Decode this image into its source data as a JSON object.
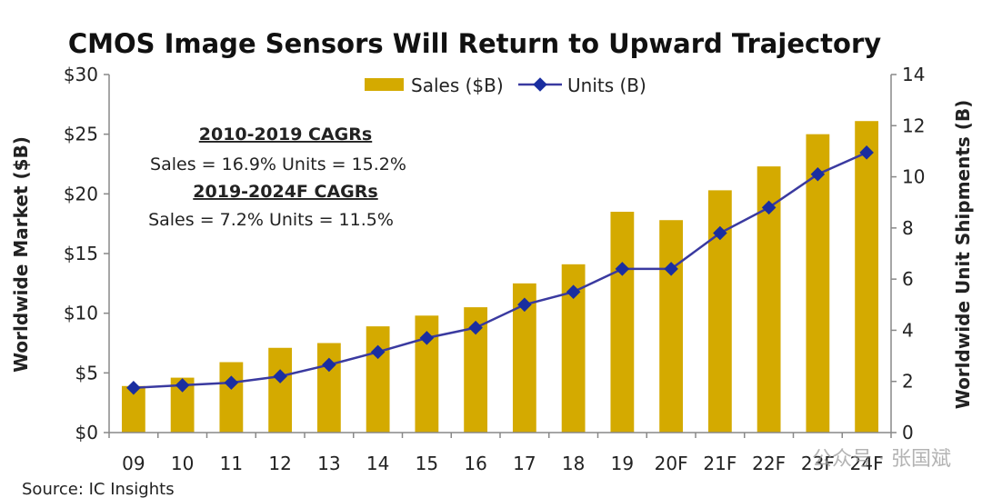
{
  "chart_data": {
    "type": "bar",
    "title": "CMOS Image Sensors Will Return to Upward Trajectory",
    "categories": [
      "09",
      "10",
      "11",
      "12",
      "13",
      "14",
      "15",
      "16",
      "17",
      "18",
      "19",
      "20F",
      "21F",
      "22F",
      "23F",
      "24F"
    ],
    "series": [
      {
        "name": "Sales ($B)",
        "type": "bar",
        "axis": "left",
        "color": "#d4aa00",
        "values": [
          3.9,
          4.6,
          5.9,
          7.1,
          7.5,
          8.9,
          9.8,
          10.5,
          12.5,
          14.1,
          18.5,
          17.8,
          20.3,
          22.3,
          25.0,
          26.1
        ]
      },
      {
        "name": "Units (B)",
        "type": "line",
        "axis": "right",
        "color": "#3a3aa0",
        "values": [
          1.75,
          1.85,
          1.95,
          2.2,
          2.65,
          3.15,
          3.7,
          4.1,
          5.0,
          5.5,
          6.4,
          6.4,
          7.8,
          8.8,
          10.1,
          10.95
        ]
      }
    ],
    "ylabel": "Worldwide Market ($B)",
    "y2label": "Worldwide Unit Shipments (B)",
    "ylim": [
      0,
      30
    ],
    "yticks": [
      0,
      5,
      10,
      15,
      20,
      25,
      30
    ],
    "yticklabels": [
      "$0",
      "$5",
      "$10",
      "$15",
      "$20",
      "$25",
      "$30"
    ],
    "y2lim": [
      0,
      14
    ],
    "y2ticks": [
      0,
      2,
      4,
      6,
      8,
      10,
      12,
      14
    ],
    "y2ticklabels": [
      "0",
      "2",
      "4",
      "6",
      "8",
      "10",
      "12",
      "14"
    ],
    "legend_position": "top-center",
    "legend": [
      "Sales ($B)",
      "Units (B)"
    ],
    "grid": false,
    "annotations": {
      "cagr1_head": "2010-2019 CAGRs",
      "cagr1_line": "Sales = 16.9%  Units = 15.2%",
      "cagr2_head": "2019-2024F CAGRs",
      "cagr2_line": "Sales = 7.2%  Units = 11.5%"
    },
    "source": "Source: IC Insights"
  },
  "watermark": "公众号 · 张国斌"
}
